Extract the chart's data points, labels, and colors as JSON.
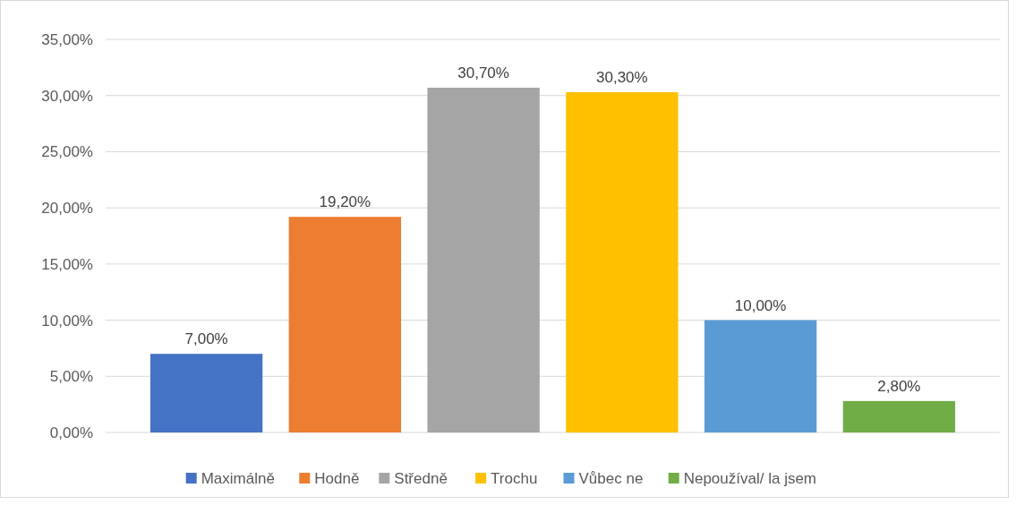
{
  "chart_data": {
    "type": "bar",
    "categories": [
      null
    ],
    "series": [
      {
        "name": "Maximálně",
        "color": "#4472c4",
        "values": [
          7.0
        ],
        "value_labels": [
          "7,00%"
        ]
      },
      {
        "name": "Hodně",
        "color": "#ed7d31",
        "values": [
          19.2
        ],
        "value_labels": [
          "19,20%"
        ]
      },
      {
        "name": "Středně",
        "color": "#a5a5a5",
        "values": [
          30.7
        ],
        "value_labels": [
          "30,70%"
        ]
      },
      {
        "name": "Trochu",
        "color": "#ffc000",
        "values": [
          30.3
        ],
        "value_labels": [
          "30,30%"
        ]
      },
      {
        "name": "Vůbec ne",
        "color": "#5b9bd5",
        "values": [
          10.0
        ],
        "value_labels": [
          "10,00%"
        ]
      },
      {
        "name": "Nepoužíval/ la jsem",
        "color": "#70ad47",
        "values": [
          2.8
        ],
        "value_labels": [
          "2,80%"
        ]
      }
    ],
    "ylim": [
      0,
      35
    ],
    "yticks": [
      {
        "value": 0,
        "label": "0,00%"
      },
      {
        "value": 5,
        "label": "5,00%"
      },
      {
        "value": 10,
        "label": "10,00%"
      },
      {
        "value": 15,
        "label": "15,00%"
      },
      {
        "value": 20,
        "label": "20,00%"
      },
      {
        "value": 25,
        "label": "25,00%"
      },
      {
        "value": 30,
        "label": "30,00%"
      },
      {
        "value": 35,
        "label": "35,00%"
      }
    ],
    "grid": "y",
    "legend": "bottom"
  }
}
